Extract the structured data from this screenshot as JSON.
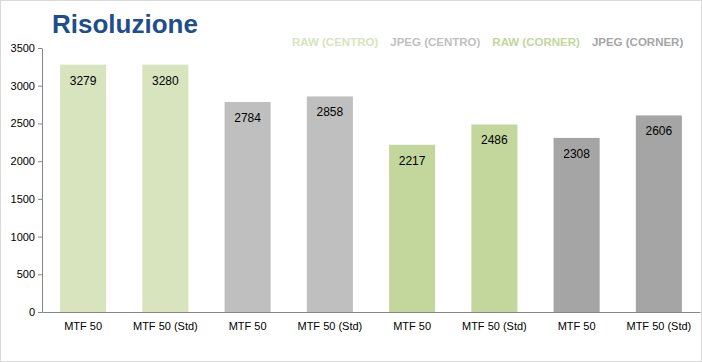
{
  "chart_data": {
    "type": "bar",
    "title": "Risoluzione",
    "categories": [
      "MTF 50",
      "MTF 50 (Std)",
      "MTF 50",
      "MTF 50 (Std)",
      "MTF 50",
      "MTF 50 (Std)",
      "MTF 50",
      "MTF 50 (Std)"
    ],
    "series": [
      {
        "name": "RAW (CENTRO)",
        "color": "#d7e4bd",
        "values": [
          3279,
          3280,
          null,
          null,
          null,
          null,
          null,
          null
        ]
      },
      {
        "name": "JPEG (CENTRO)",
        "color": "#bfbfbf",
        "values": [
          null,
          null,
          2784,
          2858,
          null,
          null,
          null,
          null
        ]
      },
      {
        "name": "RAW (CORNER)",
        "color": "#c3d69b",
        "values": [
          null,
          null,
          null,
          null,
          2217,
          2486,
          null,
          null
        ]
      },
      {
        "name": "JPEG (CORNER)",
        "color": "#a5a5a5",
        "values": [
          null,
          null,
          null,
          null,
          null,
          null,
          2308,
          2606
        ]
      }
    ],
    "ylim": [
      0,
      3500
    ],
    "yticks": [
      0,
      500,
      1000,
      1500,
      2000,
      2500,
      3000,
      3500
    ],
    "grid": false,
    "legend": "top",
    "data_labels": true
  }
}
